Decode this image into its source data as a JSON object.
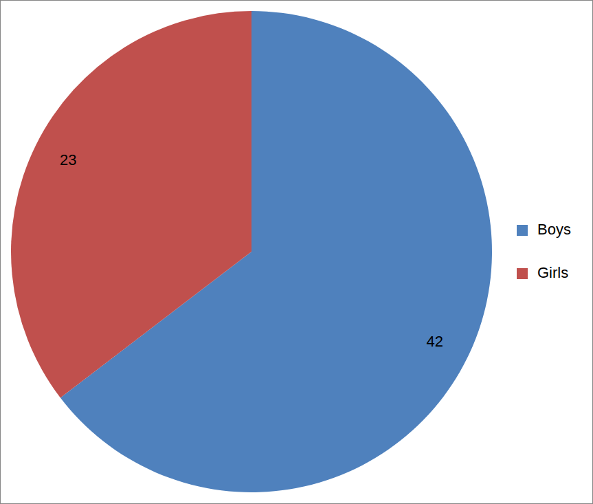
{
  "chart_data": {
    "type": "pie",
    "categories": [
      "Boys",
      "Girls"
    ],
    "values": [
      42,
      23
    ],
    "colors": [
      "#4f81bd",
      "#c0504d"
    ],
    "data_labels": true,
    "legend": "right"
  }
}
